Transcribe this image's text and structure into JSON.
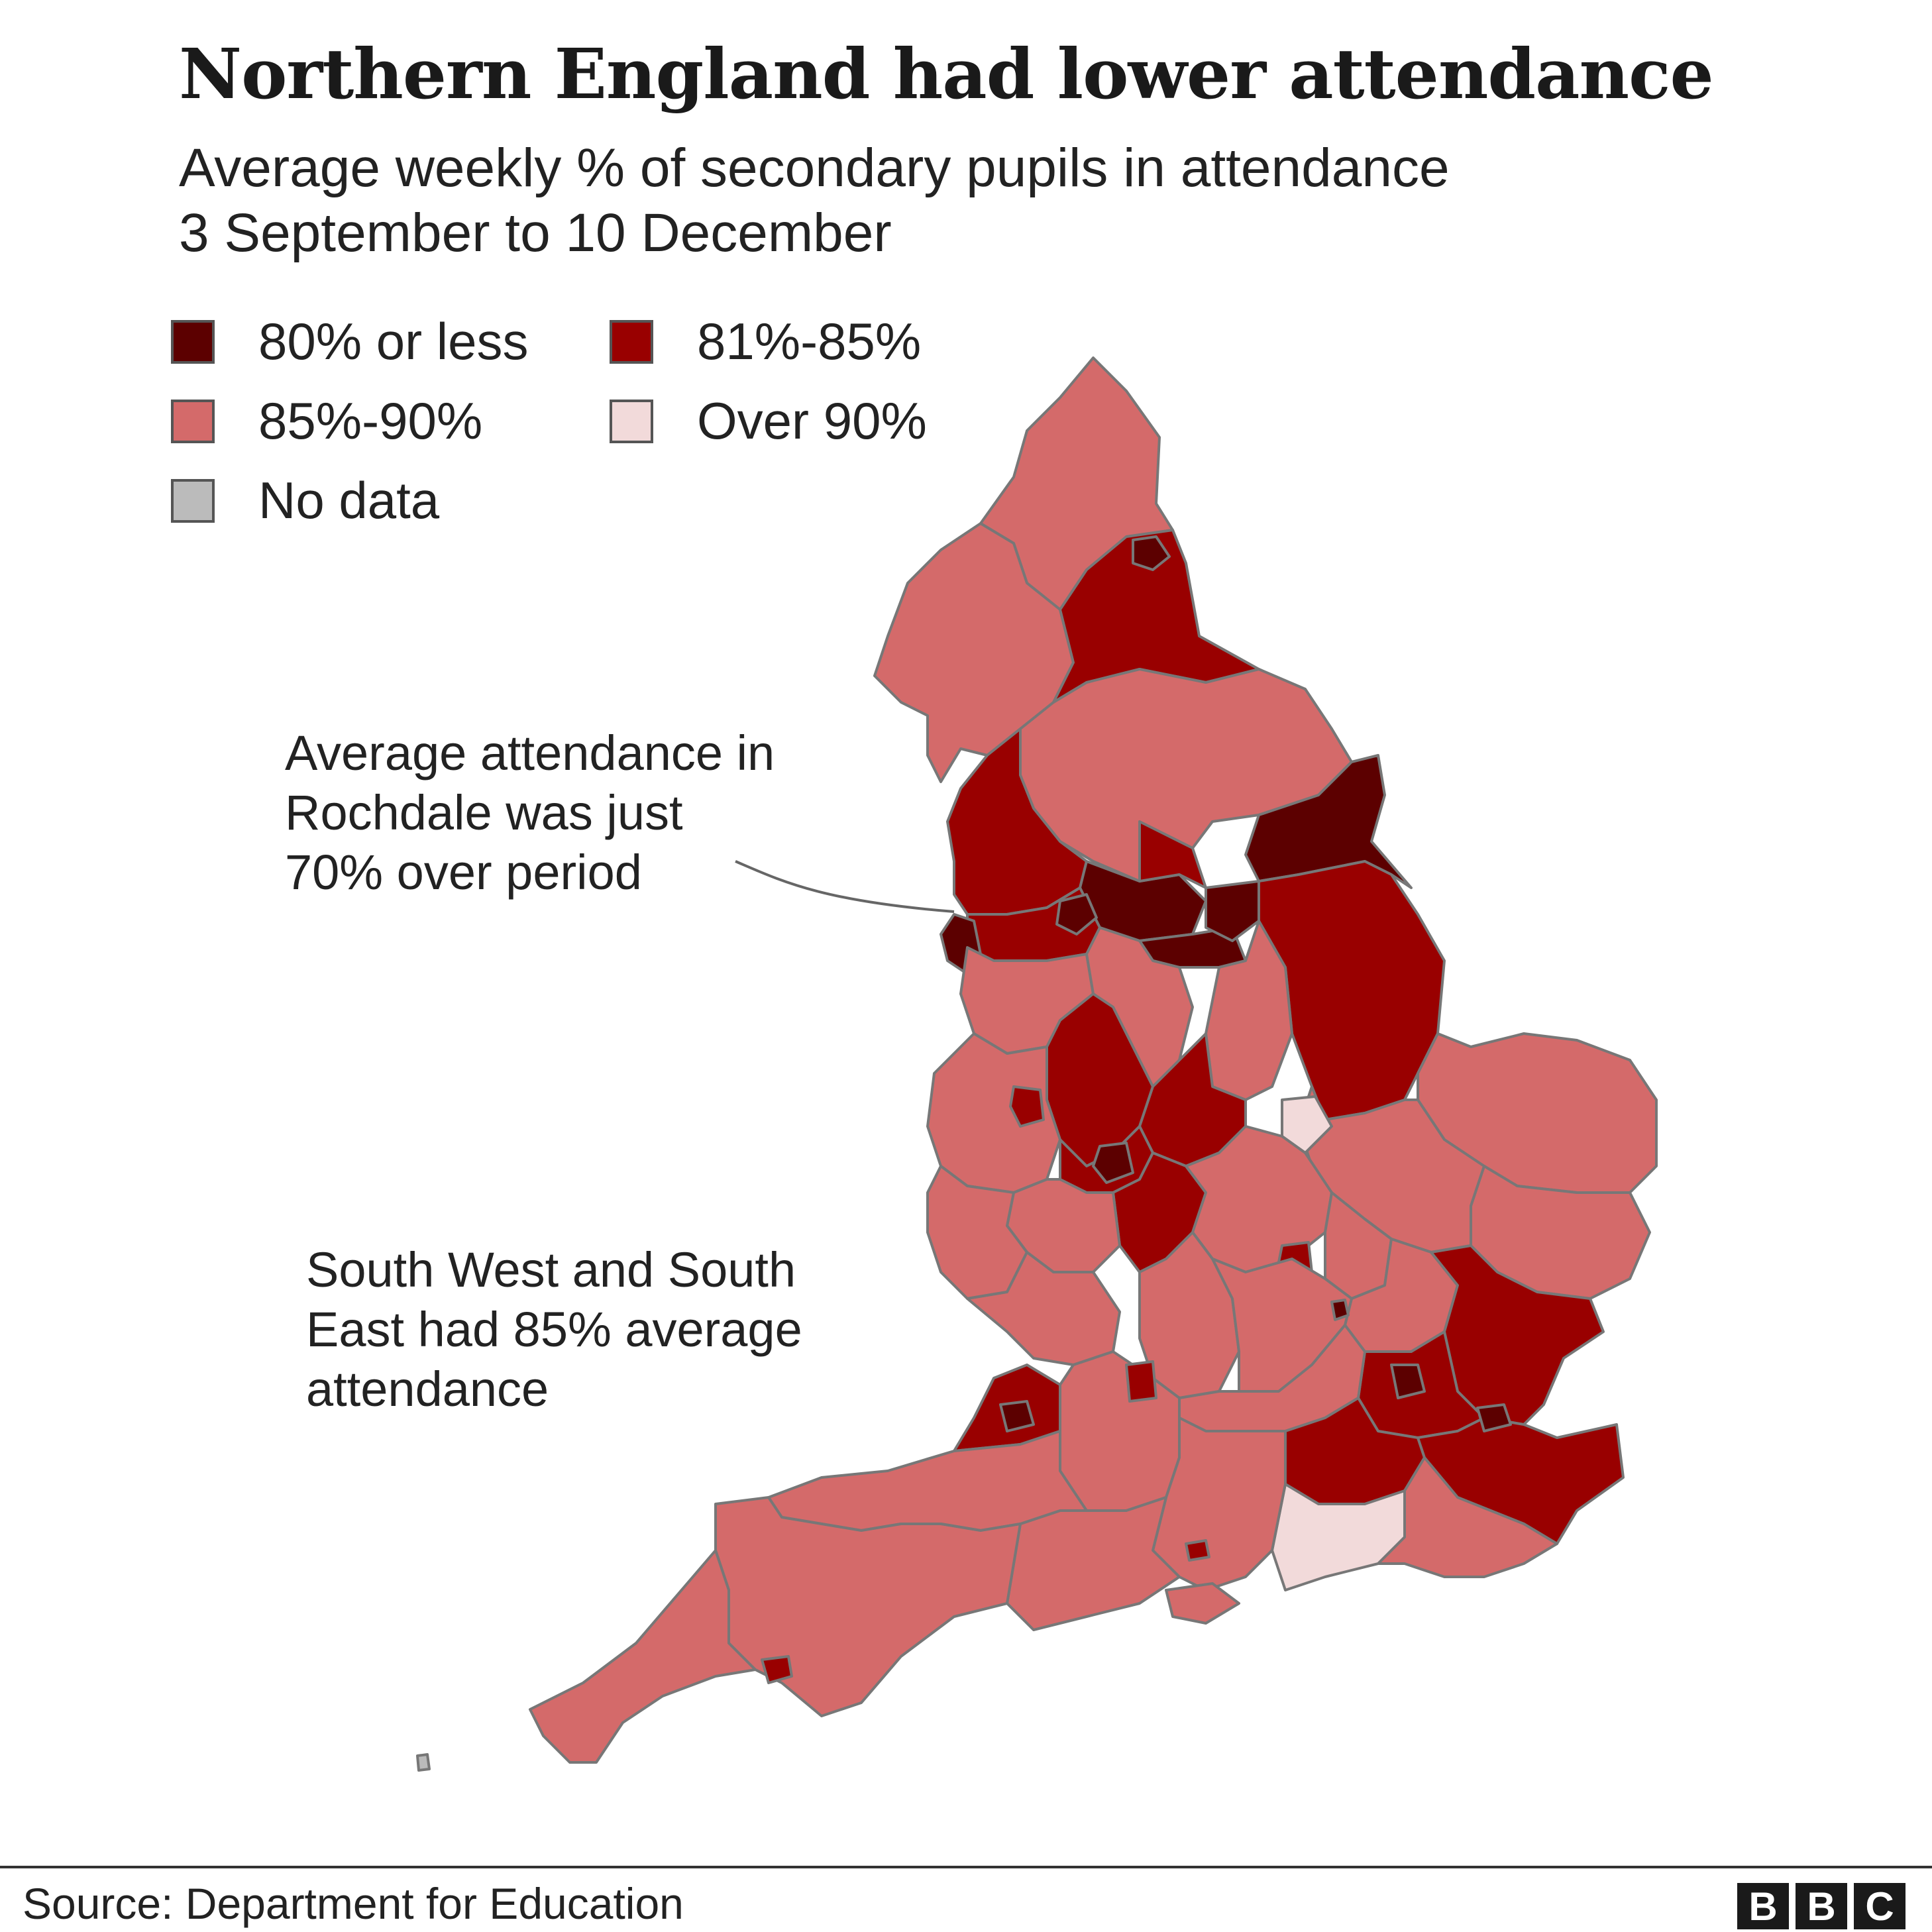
{
  "title": "Northern England had lower attendance",
  "subtitle_line1": "Average weekly % of secondary pupils in attendance",
  "subtitle_line2": "3 September to 10 December",
  "legend": [
    {
      "label": "80% or less",
      "color": "#5c0000"
    },
    {
      "label": "81%-85%",
      "color": "#990000"
    },
    {
      "label": "85%-90%",
      "color": "#d46a6a"
    },
    {
      "label": "Over 90%",
      "color": "#f2dada"
    },
    {
      "label": "No data",
      "color": "#bbbbbb"
    }
  ],
  "annotations": {
    "rochdale": [
      "Average attendance in",
      "Rochdale was just",
      "70% over period"
    ],
    "south": [
      "South West and South",
      "East had 85% average",
      "attendance"
    ]
  },
  "source": "Source: Department for Education",
  "logo": [
    "B",
    "B",
    "C"
  ]
}
